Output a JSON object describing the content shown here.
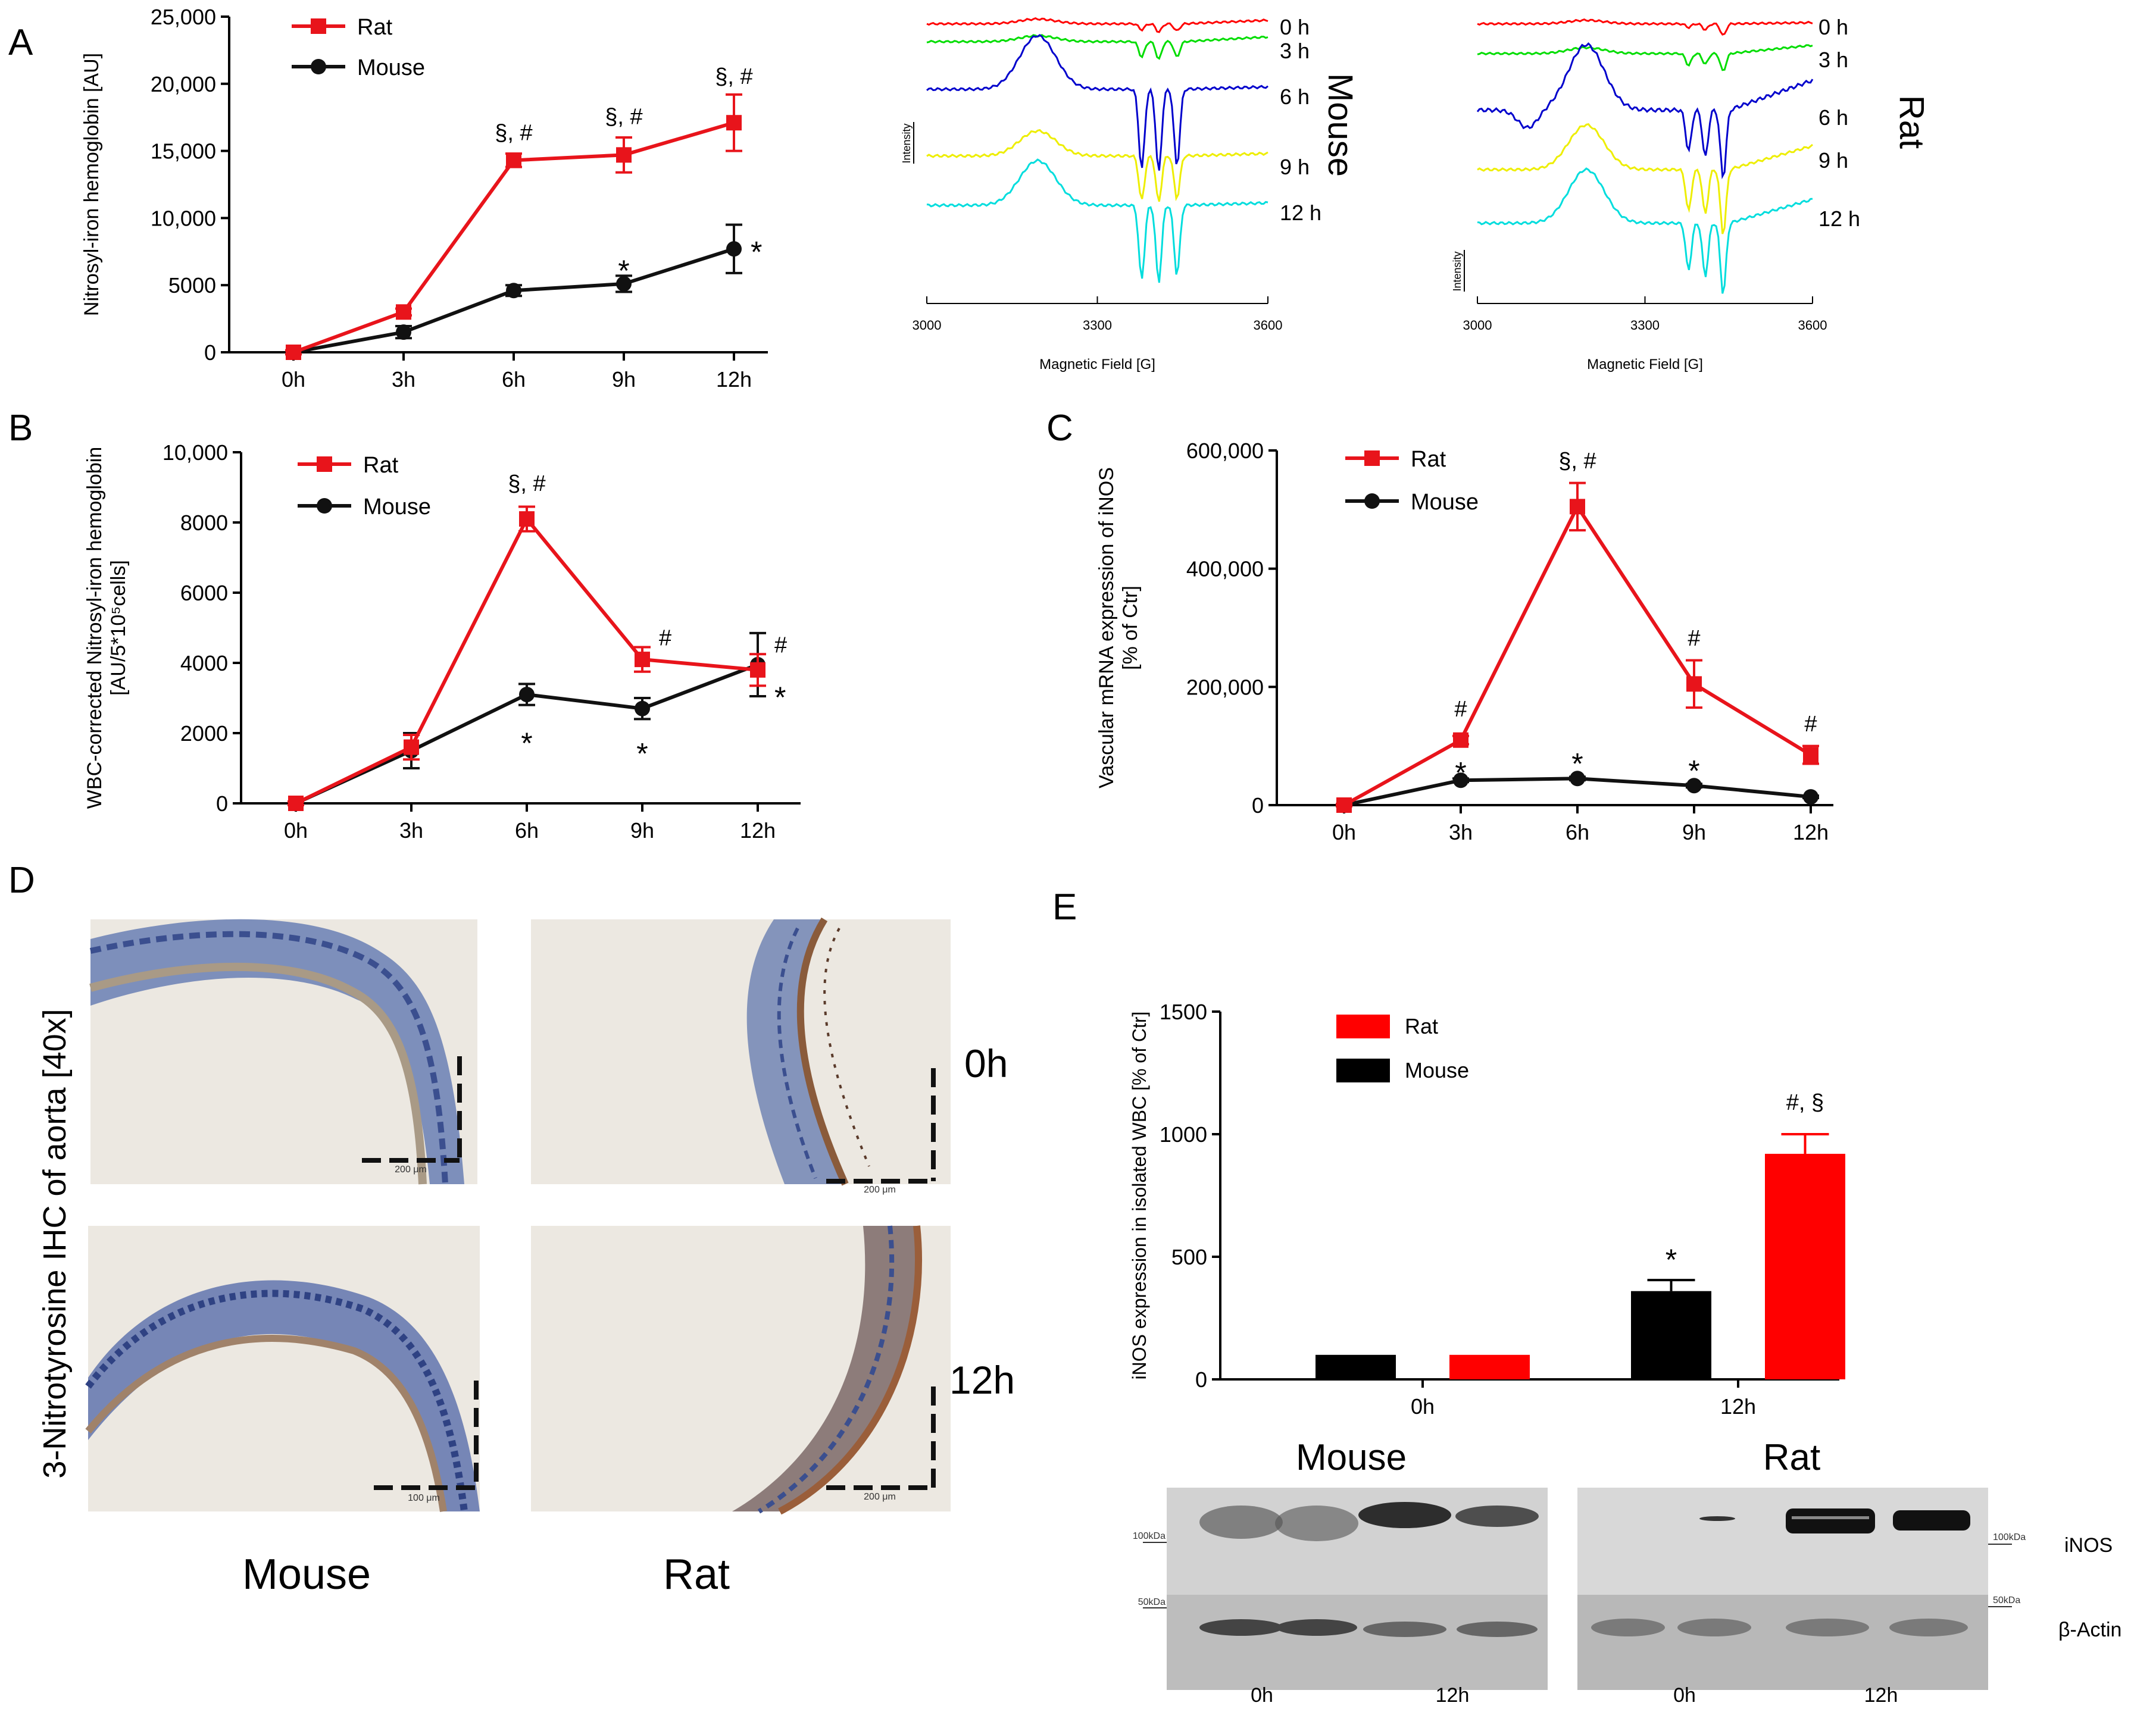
{
  "panel_letters": {
    "a": "A",
    "b": "B",
    "c": "C",
    "d": "D",
    "e": "E"
  },
  "colors": {
    "rat": "#e8141b",
    "mouse": "#111111",
    "red_bar": "#ff0000",
    "axis": "#000000"
  },
  "chart_data": [
    {
      "id": "A",
      "type": "line",
      "ylabel": "Nitrosyl-iron hemoglobin [AU]",
      "categories": [
        "0h",
        "3h",
        "6h",
        "9h",
        "12h"
      ],
      "ylim": [
        0,
        25000
      ],
      "yticks": [
        0,
        5000,
        10000,
        15000,
        20000,
        25000
      ],
      "ytick_labels": [
        "0",
        "5000",
        "10,000",
        "15,000",
        "20,000",
        "25,000"
      ],
      "series": [
        {
          "name": "Rat",
          "color": "#e8141b",
          "marker": "square",
          "values": [
            0,
            3000,
            14300,
            14700,
            17100
          ],
          "errors": [
            150,
            250,
            500,
            1300,
            2100
          ]
        },
        {
          "name": "Mouse",
          "color": "#111111",
          "marker": "circle",
          "values": [
            0,
            1500,
            4600,
            5100,
            7700
          ],
          "errors": [
            100,
            450,
            400,
            600,
            1800
          ]
        }
      ],
      "annotations": [
        {
          "category": "6h",
          "text": "§, #",
          "side": "above",
          "y": 15800
        },
        {
          "category": "9h",
          "text": "§, #",
          "side": "above",
          "y": 17000
        },
        {
          "category": "12h",
          "text": "§, #",
          "side": "above",
          "y": 20000
        },
        {
          "category": "9h",
          "text": "*",
          "side": "above",
          "y": 6300
        },
        {
          "category": "12h",
          "text": "*",
          "side": "right",
          "y": 7700
        }
      ]
    },
    {
      "id": "B",
      "type": "line",
      "ylabel_lines": [
        "WBC-corrected Nitrosyl-iron hemoglobin",
        "[AU/5*10⁵cells]"
      ],
      "categories": [
        "0h",
        "3h",
        "6h",
        "9h",
        "12h"
      ],
      "ylim": [
        0,
        10000
      ],
      "yticks": [
        0,
        2000,
        4000,
        6000,
        8000,
        10000
      ],
      "ytick_labels": [
        "0",
        "2000",
        "4000",
        "6000",
        "8000",
        "10,000"
      ],
      "series": [
        {
          "name": "Rat",
          "color": "#e8141b",
          "marker": "square",
          "values": [
            0,
            1600,
            8100,
            4100,
            3800
          ],
          "errors": [
            50,
            350,
            350,
            350,
            450
          ]
        },
        {
          "name": "Mouse",
          "color": "#111111",
          "marker": "circle",
          "values": [
            0,
            1500,
            3100,
            2700,
            3950
          ],
          "errors": [
            50,
            500,
            300,
            300,
            900
          ]
        }
      ],
      "annotations": [
        {
          "category": "6h",
          "text": "§, #",
          "side": "above",
          "y": 8900
        },
        {
          "category": "9h",
          "text": "#",
          "side": "right",
          "y": 4500
        },
        {
          "category": "12h",
          "text": "#",
          "side": "right",
          "y": 4300
        },
        {
          "category": "6h",
          "text": "*",
          "side": "below",
          "y": 1800
        },
        {
          "category": "9h",
          "text": "*",
          "side": "below",
          "y": 1500
        },
        {
          "category": "12h",
          "text": "*",
          "side": "right",
          "y": 3100
        }
      ]
    },
    {
      "id": "C",
      "type": "line",
      "ylabel_lines": [
        "Vascular mRNA expression of iNOS",
        "[% of Ctr]"
      ],
      "categories": [
        "0h",
        "3h",
        "6h",
        "9h",
        "12h"
      ],
      "ylim": [
        0,
        600000
      ],
      "yticks": [
        0,
        200000,
        400000,
        600000
      ],
      "ytick_labels": [
        "0",
        "200,000",
        "400,000",
        "600,000"
      ],
      "series": [
        {
          "name": "Rat",
          "color": "#e8141b",
          "marker": "square",
          "values": [
            0,
            110000,
            505000,
            205000,
            85000
          ],
          "errors": [
            2000,
            7000,
            40000,
            40000,
            15000
          ]
        },
        {
          "name": "Mouse",
          "color": "#111111",
          "marker": "circle",
          "values": [
            0,
            42000,
            45000,
            33000,
            14000
          ],
          "errors": [
            1000,
            3000,
            3000,
            3000,
            2000
          ]
        }
      ],
      "annotations": [
        {
          "category": "3h",
          "text": "#",
          "side": "above",
          "y": 150000
        },
        {
          "category": "6h",
          "text": "§, #",
          "side": "above",
          "y": 570000
        },
        {
          "category": "9h",
          "text": "#",
          "side": "above",
          "y": 270000
        },
        {
          "category": "12h",
          "text": "#",
          "side": "above",
          "y": 125000
        },
        {
          "category": "3h",
          "text": "*",
          "side": "above",
          "y": 60000
        },
        {
          "category": "6h",
          "text": "*",
          "side": "above",
          "y": 75000
        },
        {
          "category": "9h",
          "text": "*",
          "side": "above",
          "y": 63000
        }
      ]
    },
    {
      "id": "E",
      "type": "bar",
      "ylabel": "iNOS expression in isolated WBC [% of Ctr]",
      "categories": [
        "0h",
        "12h"
      ],
      "ylim": [
        0,
        1500
      ],
      "yticks": [
        0,
        500,
        1000,
        1500
      ],
      "ytick_labels": [
        "0",
        "500",
        "1000",
        "1500"
      ],
      "series": [
        {
          "name": "Mouse",
          "color": "#000000",
          "values": [
            100,
            360
          ],
          "errors": [
            0,
            45
          ]
        },
        {
          "name": "Rat",
          "color": "#ff0000",
          "values": [
            100,
            920
          ],
          "errors": [
            0,
            80
          ]
        }
      ],
      "legend_order": [
        "Rat",
        "Mouse"
      ],
      "annotations": [
        {
          "category": "12h",
          "series": "Mouse",
          "text": "*",
          "y": 500
        },
        {
          "category": "12h",
          "series": "Rat",
          "text": "#, §",
          "y": 1100
        }
      ]
    },
    {
      "id": "EPR-Mouse",
      "type": "line",
      "title": "Mouse",
      "xlabel": "Magnetic Field [G]",
      "ylabel": "Intensity",
      "xlim": [
        3000,
        3600
      ],
      "xticks": [
        3000,
        3300,
        3600
      ],
      "xtick_labels": [
        "3000",
        "3300",
        "3600"
      ],
      "series": [
        {
          "name": "0 h",
          "color": "#ff0000"
        },
        {
          "name": "3 h",
          "color": "#00dd00"
        },
        {
          "name": "6 h",
          "color": "#0000cc"
        },
        {
          "name": "9 h",
          "color": "#eeee00"
        },
        {
          "name": "12 h",
          "color": "#00dddd"
        }
      ]
    },
    {
      "id": "EPR-Rat",
      "type": "line",
      "title": "Rat",
      "xlabel": "Magnetic Field [G]",
      "ylabel": "Intensity",
      "xlim": [
        3000,
        3600
      ],
      "xticks": [
        3000,
        3300,
        3600
      ],
      "xtick_labels": [
        "3000",
        "3300",
        "3600"
      ],
      "series": [
        {
          "name": "0 h",
          "color": "#ff0000"
        },
        {
          "name": "3 h",
          "color": "#00dd00"
        },
        {
          "name": "6 h",
          "color": "#0000cc"
        },
        {
          "name": "9 h",
          "color": "#eeee00"
        },
        {
          "name": "12 h",
          "color": "#00dddd"
        }
      ]
    }
  ],
  "panel_d": {
    "ylabel": "3-Nitrotyrosine IHC of aorta [40x]",
    "row_labels": [
      "0h",
      "12h"
    ],
    "col_labels": [
      "Mouse",
      "Rat"
    ],
    "scale_labels": [
      "200 μm",
      "200 μm",
      "100 μm",
      "200 μm"
    ]
  },
  "blot": {
    "titles": [
      "Mouse",
      "Rat"
    ],
    "left_markers": [
      "100kDa",
      "50kDa"
    ],
    "right_markers": [
      "100kDa",
      "50kDa"
    ],
    "bands": [
      "iNOS",
      "β-Actin"
    ],
    "time_labels": [
      "0h",
      "12h",
      "0h",
      "12h"
    ]
  }
}
